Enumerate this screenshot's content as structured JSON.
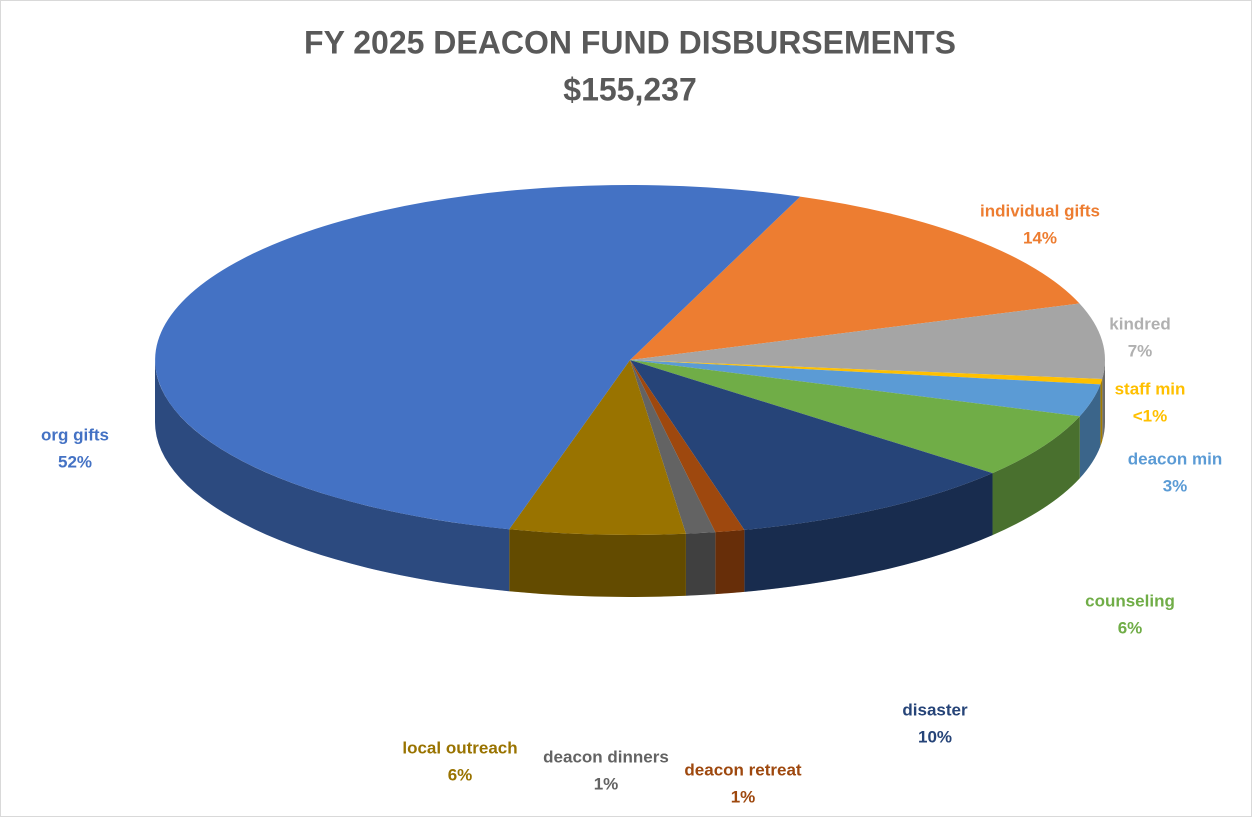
{
  "chart_data": {
    "type": "pie",
    "title": "FY 2025 DEACON FUND DISBURSEMENTS",
    "subtitle": "$155,237",
    "categories": [
      "individual gifts",
      "kindred",
      "staff min",
      "deacon min",
      "counseling",
      "disaster",
      "deacon retreat",
      "deacon dinners",
      "local outreach",
      "org gifts"
    ],
    "values": [
      14,
      7,
      0.5,
      3,
      6,
      10,
      1,
      1,
      6,
      52
    ],
    "value_labels": [
      "14%",
      "7%",
      "<1%",
      "3%",
      "6%",
      "10%",
      "1%",
      "1%",
      "6%",
      "52%"
    ],
    "colors": [
      "#ed7d31",
      "#a5a5a5",
      "#ffc000",
      "#5b9bd5",
      "#70ad47",
      "#264478",
      "#9e480e",
      "#636363",
      "#997300",
      "#4472c4"
    ]
  }
}
